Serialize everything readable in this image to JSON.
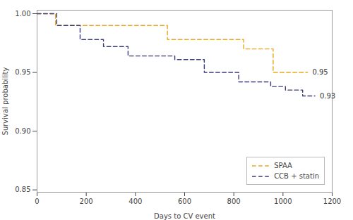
{
  "chart_data": {
    "type": "step",
    "xlabel": "Days to CV event",
    "ylabel": "Survival probability",
    "xlim": [
      0,
      1200
    ],
    "ylim": [
      0.848,
      1.003
    ],
    "xticks": [
      0,
      200,
      400,
      600,
      800,
      1000,
      1200
    ],
    "yticks": [
      0.85,
      {
        "value": 0.9,
        "label": "0.90"
      },
      0.95,
      {
        "value": 1.0,
        "label": "1.00"
      }
    ],
    "grid": false,
    "legend": "lower right",
    "line_style": "dashed",
    "series": [
      {
        "name": "SPAA",
        "color": "#E8A820",
        "x": [
          0,
          75,
          120,
          450,
          530,
          720,
          840,
          960,
          1100
        ],
        "values": [
          1.0,
          0.99,
          0.99,
          0.99,
          0.978,
          0.978,
          0.97,
          0.95,
          0.95
        ]
      },
      {
        "name": "CCB + statin",
        "color": "#3B3B7A",
        "x": [
          0,
          80,
          175,
          270,
          370,
          560,
          680,
          820,
          950,
          1010,
          1080,
          1130
        ],
        "values": [
          1.0,
          0.99,
          0.978,
          0.972,
          0.964,
          0.961,
          0.95,
          0.942,
          0.938,
          0.935,
          0.93,
          0.93
        ]
      }
    ],
    "annotations": [
      {
        "text": "0.95",
        "x": 1108,
        "y": 0.95
      },
      {
        "text": "0.93",
        "x": 1138,
        "y": 0.93
      }
    ]
  }
}
